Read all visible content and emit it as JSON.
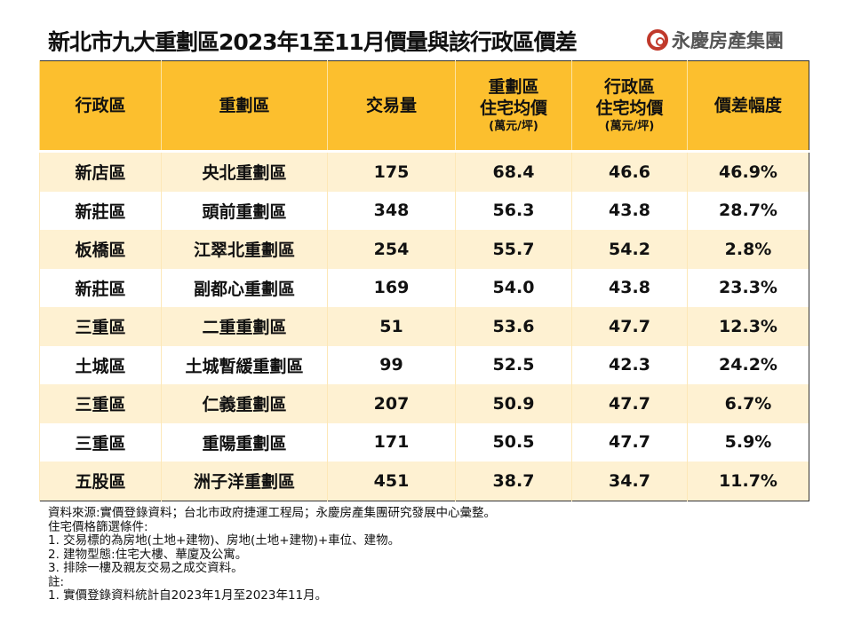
{
  "title": "新北市九大重劃區2023年1至11月價量與該行政區價差",
  "logo": {
    "text": "永慶房產集團",
    "color": "#c0392b"
  },
  "colors": {
    "header": "#fcbf2e",
    "row_alt": "#fef1d2"
  },
  "chart_data": {
    "type": "table",
    "columns": [
      {
        "label": "行政區",
        "unit": ""
      },
      {
        "label": "重劃區",
        "unit": ""
      },
      {
        "label": "交易量",
        "unit": ""
      },
      {
        "label": "重劃區\n住宅均價",
        "label_lines": [
          "重劃區",
          "住宅均價"
        ],
        "unit": "(萬元/坪)"
      },
      {
        "label": "行政區\n住宅均價",
        "label_lines": [
          "行政區",
          "住宅均價"
        ],
        "unit": "(萬元/坪)"
      },
      {
        "label": "價差幅度",
        "unit": ""
      }
    ],
    "rows": [
      [
        "新店區",
        "央北重劃區",
        "175",
        "68.4",
        "46.6",
        "46.9%"
      ],
      [
        "新莊區",
        "頭前重劃區",
        "348",
        "56.3",
        "43.8",
        "28.7%"
      ],
      [
        "板橋區",
        "江翠北重劃區",
        "254",
        "55.7",
        "54.2",
        "2.8%"
      ],
      [
        "新莊區",
        "副都心重劃區",
        "169",
        "54.0",
        "43.8",
        "23.3%"
      ],
      [
        "三重區",
        "二重重劃區",
        "51",
        "53.6",
        "47.7",
        "12.3%"
      ],
      [
        "土城區",
        "土城暫緩重劃區",
        "99",
        "52.5",
        "42.3",
        "24.2%"
      ],
      [
        "三重區",
        "仁義重劃區",
        "207",
        "50.9",
        "47.7",
        "6.7%"
      ],
      [
        "三重區",
        "重陽重劃區",
        "171",
        "50.5",
        "47.7",
        "5.9%"
      ],
      [
        "五股區",
        "洲子洋重劃區",
        "451",
        "38.7",
        "34.7",
        "11.7%"
      ]
    ]
  },
  "notes": [
    "資料來源:實價登錄資料；台北市政府捷運工程局；永慶房產集團研究發展中心彙整。",
    "住宅價格篩選條件:",
    "1. 交易標的為房地(土地+建物)、房地(土地+建物)+車位、建物。",
    "2. 建物型態:住宅大樓、華廈及公寓。",
    "3. 排除一樓及親友交易之成交資料。",
    "註:",
    "1. 實價登錄資料統計自2023年1月至2023年11月。"
  ]
}
